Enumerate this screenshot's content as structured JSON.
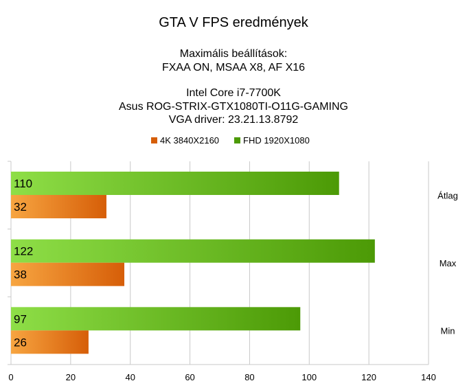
{
  "title": "GTA V FPS eredmények",
  "subtitle_lines": [
    "Maximális beállítások:",
    "FXAA ON, MSAA X8, AF X16",
    "",
    "Intel Core i7-7700K",
    "Asus ROG-STRIX-GTX1080TI-O11G-GAMING",
    "VGA driver: 23.21.13.8792"
  ],
  "colors": {
    "fhd_light": "#8ede47",
    "fhd_dark": "#4c9a06",
    "k4_light": "#f7a541",
    "k4_dark": "#d65e08",
    "grid": "#c8c8c8"
  },
  "chart_data": {
    "type": "bar",
    "orientation": "horizontal",
    "categories": [
      "Átlag",
      "Max",
      "Min"
    ],
    "series": [
      {
        "name": "4K 3840X2160",
        "values": [
          32,
          38,
          26
        ]
      },
      {
        "name": "FHD 1920X1080",
        "values": [
          110,
          122,
          97
        ]
      }
    ],
    "xlim": [
      0,
      140
    ],
    "xticks": [
      0,
      20,
      40,
      60,
      80,
      100,
      120,
      140
    ],
    "grid": true,
    "legend_position": "top-center"
  }
}
